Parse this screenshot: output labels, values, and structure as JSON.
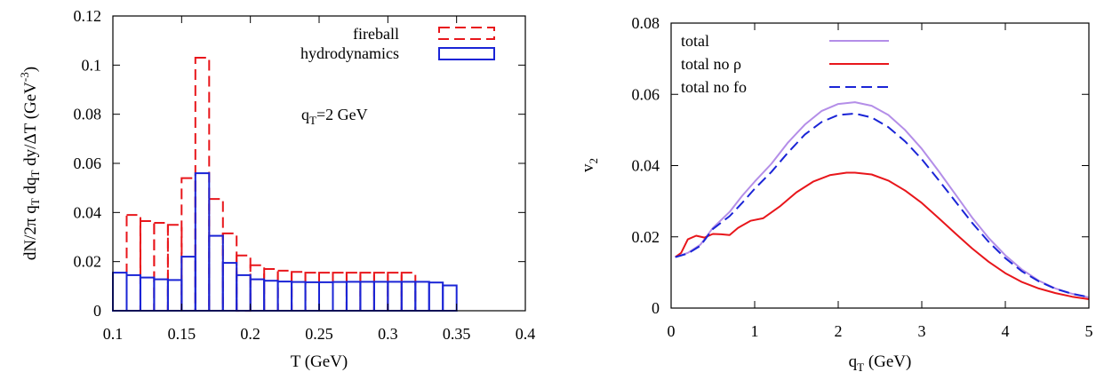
{
  "chart_data": [
    {
      "type": "histogram",
      "xlabel": "T (GeV)",
      "ylabel": {
        "main": "dN/2π q",
        "s1": "T",
        "mid": " dq",
        "s2": "T",
        "tail": " dy/ΔT (GeV",
        "sup": "-3",
        "end": ")"
      },
      "xlim": [
        0.1,
        0.4
      ],
      "ylim": [
        0,
        0.12
      ],
      "xticks": [
        "0.1",
        "0.15",
        "0.2",
        "0.25",
        "0.3",
        "0.35",
        "0.4"
      ],
      "yticks": [
        "0",
        "0.02",
        "0.04",
        "0.06",
        "0.08",
        "0.1",
        "0.12"
      ],
      "annotation": {
        "pre": "q",
        "sub": "T",
        "post": "=2 GeV"
      },
      "legend_position": "top-right",
      "grid": false,
      "series": [
        {
          "name": "fireball",
          "color": "#e8161b",
          "style": "dashed",
          "bin_width": 0.01,
          "bins": [
            [
              0.11,
              0.039
            ],
            [
              0.12,
              0.0365
            ],
            [
              0.13,
              0.0358
            ],
            [
              0.14,
              0.035
            ],
            [
              0.15,
              0.054
            ],
            [
              0.16,
              0.103
            ],
            [
              0.17,
              0.0455
            ],
            [
              0.18,
              0.0315
            ],
            [
              0.19,
              0.0225
            ],
            [
              0.2,
              0.0185
            ],
            [
              0.21,
              0.017
            ],
            [
              0.22,
              0.0163
            ],
            [
              0.23,
              0.0158
            ],
            [
              0.24,
              0.0155
            ],
            [
              0.25,
              0.0155
            ],
            [
              0.26,
              0.0155
            ],
            [
              0.27,
              0.0155
            ],
            [
              0.28,
              0.0155
            ],
            [
              0.29,
              0.0155
            ],
            [
              0.3,
              0.0155
            ],
            [
              0.31,
              0.0155
            ]
          ]
        },
        {
          "name": "hydrodynamics",
          "color": "#1a24d6",
          "style": "solid",
          "bin_width": 0.01,
          "bins": [
            [
              0.1,
              0.0155
            ],
            [
              0.11,
              0.0145
            ],
            [
              0.12,
              0.0135
            ],
            [
              0.13,
              0.0128
            ],
            [
              0.14,
              0.0125
            ],
            [
              0.15,
              0.022
            ],
            [
              0.16,
              0.056
            ],
            [
              0.17,
              0.0305
            ],
            [
              0.18,
              0.0195
            ],
            [
              0.19,
              0.0145
            ],
            [
              0.2,
              0.0128
            ],
            [
              0.21,
              0.0122
            ],
            [
              0.22,
              0.0119
            ],
            [
              0.23,
              0.0117
            ],
            [
              0.24,
              0.0116
            ],
            [
              0.25,
              0.0116
            ],
            [
              0.26,
              0.0117
            ],
            [
              0.27,
              0.0118
            ],
            [
              0.28,
              0.0118
            ],
            [
              0.29,
              0.0118
            ],
            [
              0.3,
              0.0118
            ],
            [
              0.31,
              0.0118
            ],
            [
              0.32,
              0.0118
            ],
            [
              0.33,
              0.0115
            ],
            [
              0.34,
              0.0103
            ]
          ]
        }
      ]
    },
    {
      "type": "line",
      "xlabel": {
        "pre": "q",
        "sub": "T",
        "post": " (GeV)"
      },
      "ylabel": {
        "pre": "v",
        "sub": "2"
      },
      "xlim": [
        0,
        5
      ],
      "ylim": [
        0,
        0.08
      ],
      "xticks": [
        "0",
        "1",
        "2",
        "3",
        "4",
        "5"
      ],
      "yticks": [
        "0",
        "0.02",
        "0.04",
        "0.06",
        "0.08"
      ],
      "legend_position": "top-left",
      "grid": false,
      "series": [
        {
          "name": "total",
          "color": "#b48ee8",
          "style": "solid",
          "points": [
            [
              0.05,
              0.0143
            ],
            [
              0.2,
              0.0155
            ],
            [
              0.35,
              0.0178
            ],
            [
              0.5,
              0.0225
            ],
            [
              0.7,
              0.027
            ],
            [
              0.85,
              0.0315
            ],
            [
              1.0,
              0.0355
            ],
            [
              1.2,
              0.0405
            ],
            [
              1.4,
              0.0465
            ],
            [
              1.6,
              0.0515
            ],
            [
              1.8,
              0.0553
            ],
            [
              2.0,
              0.0573
            ],
            [
              2.2,
              0.0578
            ],
            [
              2.4,
              0.0568
            ],
            [
              2.6,
              0.0542
            ],
            [
              2.8,
              0.05
            ],
            [
              3.0,
              0.0447
            ],
            [
              3.2,
              0.0385
            ],
            [
              3.4,
              0.032
            ],
            [
              3.6,
              0.0255
            ],
            [
              3.8,
              0.0197
            ],
            [
              4.0,
              0.0148
            ],
            [
              4.2,
              0.0108
            ],
            [
              4.4,
              0.0077
            ],
            [
              4.6,
              0.0055
            ],
            [
              4.8,
              0.004
            ],
            [
              5.0,
              0.003
            ]
          ]
        },
        {
          "name": "total no ρ",
          "color": "#e8161b",
          "style": "solid",
          "points": [
            [
              0.05,
              0.0143
            ],
            [
              0.12,
              0.0155
            ],
            [
              0.2,
              0.0193
            ],
            [
              0.3,
              0.0203
            ],
            [
              0.4,
              0.0198
            ],
            [
              0.5,
              0.0208
            ],
            [
              0.6,
              0.0207
            ],
            [
              0.7,
              0.0205
            ],
            [
              0.8,
              0.0225
            ],
            [
              0.95,
              0.0245
            ],
            [
              1.1,
              0.0252
            ],
            [
              1.3,
              0.0285
            ],
            [
              1.5,
              0.0325
            ],
            [
              1.7,
              0.0355
            ],
            [
              1.9,
              0.0373
            ],
            [
              2.1,
              0.038
            ],
            [
              2.2,
              0.038
            ],
            [
              2.4,
              0.0375
            ],
            [
              2.6,
              0.0358
            ],
            [
              2.8,
              0.033
            ],
            [
              3.0,
              0.0295
            ],
            [
              3.2,
              0.0253
            ],
            [
              3.4,
              0.021
            ],
            [
              3.6,
              0.0168
            ],
            [
              3.8,
              0.013
            ],
            [
              4.0,
              0.0098
            ],
            [
              4.2,
              0.0073
            ],
            [
              4.4,
              0.0055
            ],
            [
              4.6,
              0.0042
            ],
            [
              4.8,
              0.0032
            ],
            [
              5.0,
              0.0025
            ]
          ]
        },
        {
          "name": "total no fo",
          "color": "#1a24d6",
          "style": "dashed",
          "points": [
            [
              0.05,
              0.0143
            ],
            [
              0.2,
              0.0153
            ],
            [
              0.35,
              0.0175
            ],
            [
              0.5,
              0.0222
            ],
            [
              0.7,
              0.0258
            ],
            [
              0.85,
              0.0295
            ],
            [
              1.0,
              0.0335
            ],
            [
              1.2,
              0.0382
            ],
            [
              1.4,
              0.0437
            ],
            [
              1.6,
              0.0487
            ],
            [
              1.8,
              0.0522
            ],
            [
              2.0,
              0.0542
            ],
            [
              2.2,
              0.0546
            ],
            [
              2.4,
              0.0535
            ],
            [
              2.6,
              0.0508
            ],
            [
              2.8,
              0.0468
            ],
            [
              3.0,
              0.0418
            ],
            [
              3.2,
              0.036
            ],
            [
              3.4,
              0.03
            ],
            [
              3.6,
              0.024
            ],
            [
              3.8,
              0.0186
            ],
            [
              4.0,
              0.014
            ],
            [
              4.2,
              0.0103
            ],
            [
              4.4,
              0.0075
            ],
            [
              4.6,
              0.0054
            ],
            [
              4.8,
              0.004
            ],
            [
              5.0,
              0.0031
            ]
          ]
        }
      ]
    }
  ]
}
